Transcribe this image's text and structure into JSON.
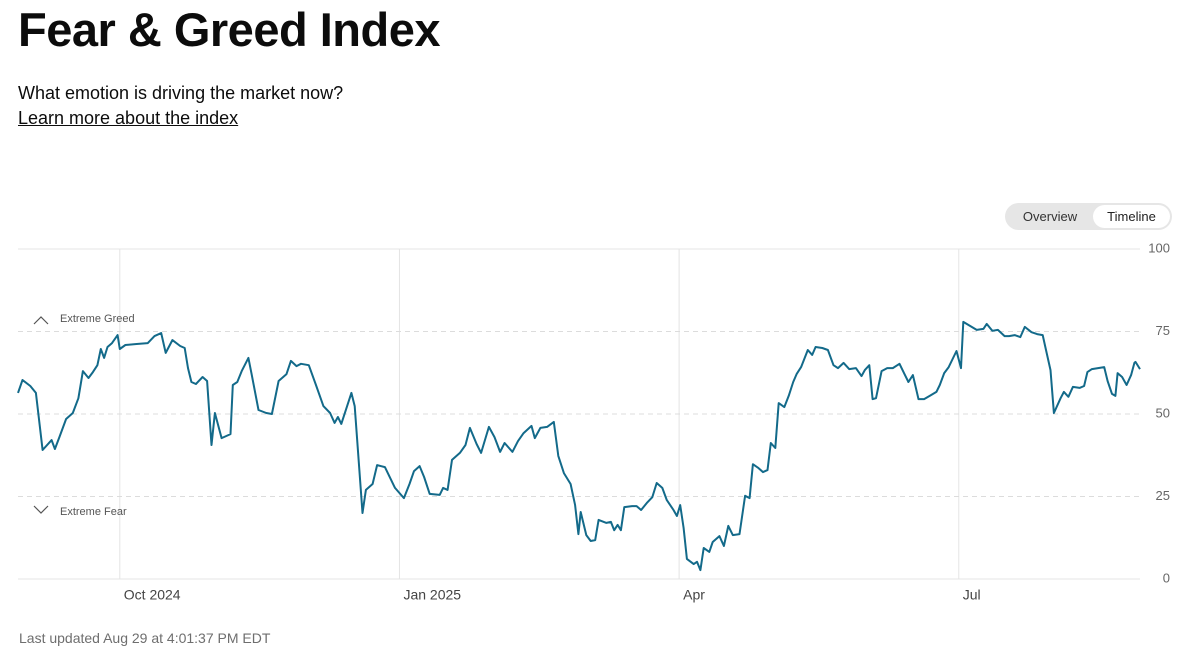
{
  "header": {
    "title": "Fear & Greed Index",
    "subtitle": "What emotion is driving the market now?",
    "link": "Learn more about the index"
  },
  "toggle": {
    "options": [
      "Overview",
      "Timeline"
    ]
  },
  "chart_data": {
    "type": "line",
    "color": "#136a8a",
    "grid": true,
    "annotations": [
      "Extreme Greed",
      "Extreme Fear"
    ],
    "xlim": [
      2024.659,
      2025.662
    ],
    "xticks": [
      {
        "value": 2024.75,
        "label": "Oct 2024"
      },
      {
        "value": 2025,
        "label": "Jan 2025"
      },
      {
        "value": 2025.25,
        "label": "Apr"
      },
      {
        "value": 2025.5,
        "label": "Jul"
      }
    ],
    "ylim": [
      0,
      100
    ],
    "yticks": [
      0,
      25,
      50,
      75,
      100
    ],
    "x": [
      2024.659,
      2024.663,
      2024.67,
      2024.675,
      2024.681,
      2024.689,
      2024.692,
      2024.696,
      2024.702,
      2024.708,
      2024.713,
      2024.717,
      2024.722,
      2024.726,
      2024.73,
      2024.733,
      2024.736,
      2024.739,
      2024.743,
      2024.748,
      2024.75,
      2024.755,
      2024.765,
      2024.775,
      2024.781,
      2024.787,
      2024.791,
      2024.797,
      2024.804,
      2024.808,
      2024.811,
      2024.814,
      2024.818,
      2024.824,
      2024.828,
      2024.832,
      2024.835,
      2024.841,
      2024.849,
      2024.851,
      2024.855,
      2024.859,
      2024.865,
      2024.868,
      2024.874,
      2024.881,
      2024.886,
      2024.892,
      2024.899,
      2024.903,
      2024.908,
      2024.912,
      2024.919,
      2024.925,
      2024.932,
      2024.938,
      2024.942,
      2024.945,
      2024.948,
      2024.957,
      2024.96,
      2024.967,
      2024.97,
      2024.976,
      2024.98,
      2024.987,
      2024.996,
      2025.004,
      2025.009,
      2025.013,
      2025.018,
      2025.022,
      2025.027,
      2025.036,
      2025.039,
      2025.043,
      2025.047,
      2025.054,
      2025.059,
      2025.063,
      2025.069,
      2025.073,
      2025.08,
      2025.085,
      2025.09,
      2025.094,
      2025.101,
      2025.106,
      2025.111,
      2025.118,
      2025.121,
      2025.126,
      2025.132,
      2025.138,
      2025.142,
      2025.147,
      2025.153,
      2025.157,
      2025.16,
      2025.162,
      2025.167,
      2025.171,
      2025.175,
      2025.178,
      2025.185,
      2025.189,
      2025.192,
      2025.195,
      2025.198,
      2025.201,
      2025.208,
      2025.212,
      2025.216,
      2025.221,
      2025.226,
      2025.23,
      2025.235,
      2025.239,
      2025.245,
      2025.248,
      2025.251,
      2025.254,
      2025.257,
      2025.263,
      2025.266,
      2025.269,
      2025.272,
      2025.277,
      2025.28,
      2025.286,
      2025.29,
      2025.294,
      2025.298,
      2025.304,
      2025.309,
      2025.313,
      2025.316,
      2025.321,
      2025.325,
      2025.329,
      2025.332,
      2025.336,
      2025.339,
      2025.344,
      2025.348,
      2025.352,
      2025.355,
      2025.359,
      2025.365,
      2025.369,
      2025.372,
      2025.378,
      2025.383,
      2025.388,
      2025.392,
      2025.397,
      2025.402,
      2025.408,
      2025.413,
      2025.416,
      2025.42,
      2025.423,
      2025.426,
      2025.431,
      2025.436,
      2025.441,
      2025.447,
      2025.451,
      2025.455,
      2025.459,
      2025.464,
      2025.469,
      2025.474,
      2025.48,
      2025.483,
      2025.487,
      2025.491,
      2025.498,
      2025.502,
      2025.504,
      2025.51,
      2025.516,
      2025.522,
      2025.525,
      2025.53,
      2025.535,
      2025.541,
      2025.545,
      2025.55,
      2025.555,
      2025.559,
      2025.565,
      2025.57,
      2025.575,
      2025.578,
      2025.582,
      2025.585,
      2025.591,
      2025.594,
      2025.598,
      2025.602,
      2025.608,
      2025.612,
      2025.615,
      2025.619,
      2025.63,
      2025.633,
      2025.637,
      2025.64,
      2025.642,
      2025.646,
      2025.65,
      2025.654,
      2025.657,
      2025.658,
      2025.662
    ],
    "values": [
      56.4,
      60.3,
      58.5,
      56.4,
      39.1,
      42.1,
      39.4,
      43.0,
      48.5,
      50.3,
      54.8,
      63.0,
      60.9,
      62.7,
      64.8,
      69.7,
      67.0,
      70.3,
      71.5,
      73.9,
      69.7,
      70.9,
      71.2,
      71.5,
      73.6,
      74.5,
      68.5,
      72.4,
      70.6,
      70.0,
      63.9,
      59.7,
      59.1,
      61.2,
      60.0,
      40.6,
      50.3,
      42.7,
      43.9,
      58.8,
      59.7,
      63.0,
      67.0,
      61.8,
      51.2,
      50.3,
      50.0,
      60.0,
      62.1,
      66.1,
      64.5,
      65.2,
      64.8,
      59.1,
      52.4,
      50.3,
      47.3,
      49.1,
      47.0,
      56.4,
      52.4,
      20.0,
      27.0,
      28.8,
      34.5,
      33.9,
      27.6,
      24.5,
      28.8,
      32.7,
      34.2,
      30.9,
      25.8,
      25.5,
      27.6,
      27.0,
      36.1,
      38.2,
      40.6,
      45.8,
      40.9,
      38.2,
      46.1,
      43.0,
      38.5,
      41.2,
      38.5,
      41.8,
      44.2,
      46.4,
      42.7,
      45.8,
      46.1,
      47.6,
      37.3,
      32.1,
      28.8,
      22.4,
      13.6,
      20.3,
      13.3,
      11.5,
      11.8,
      17.9,
      17.0,
      17.3,
      14.8,
      16.4,
      14.8,
      21.8,
      22.1,
      22.1,
      20.9,
      23.0,
      24.8,
      29.1,
      27.6,
      23.9,
      20.9,
      19.1,
      22.4,
      15.5,
      6.1,
      4.5,
      5.2,
      2.7,
      9.4,
      8.2,
      11.2,
      13.0,
      10.0,
      16.1,
      13.3,
      13.6,
      25.2,
      24.5,
      34.8,
      33.6,
      32.4,
      33.0,
      41.2,
      39.7,
      53.3,
      52.1,
      55.5,
      59.7,
      62.1,
      64.2,
      69.4,
      67.9,
      70.3,
      70.0,
      69.4,
      64.8,
      63.9,
      65.5,
      63.6,
      63.9,
      61.5,
      63.3,
      64.8,
      54.5,
      54.8,
      63.0,
      63.9,
      63.9,
      65.2,
      62.4,
      59.7,
      61.8,
      54.5,
      54.5,
      55.5,
      56.7,
      58.8,
      62.4,
      64.2,
      69.1,
      63.9,
      77.9,
      76.7,
      75.5,
      75.8,
      77.3,
      75.2,
      75.5,
      73.6,
      73.6,
      73.9,
      73.3,
      76.4,
      74.8,
      74.2,
      73.9,
      69.4,
      63.3,
      50.3,
      54.8,
      56.7,
      55.2,
      58.2,
      57.9,
      58.5,
      62.7,
      63.6,
      64.2,
      60.0,
      56.1,
      55.5,
      62.4,
      61.2,
      58.8,
      61.8,
      65.5,
      65.8,
      63.6
    ]
  },
  "footer": {
    "updated": "Last updated Aug 29 at 4:01:37 PM EDT"
  }
}
